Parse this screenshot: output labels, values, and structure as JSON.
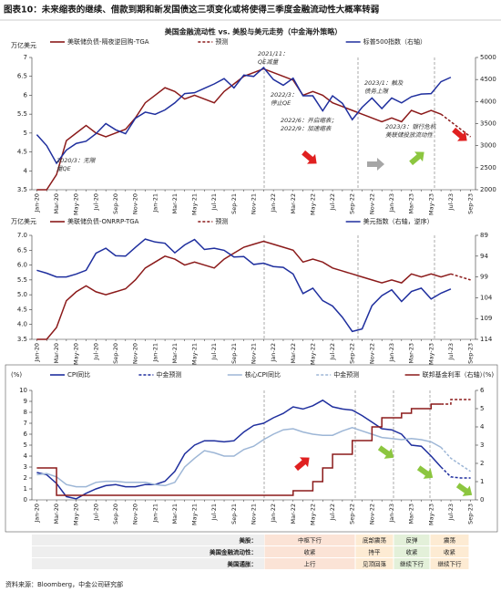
{
  "title": "图表10：未来缩表的继续、借款到期和新发国债这三项变化或将使得三季度金融流动性大概率转弱",
  "chart_data": [
    {
      "type": "line",
      "title": "美国金融流动性 vs. 美股与美元走势（中金海外策略）",
      "y_label": "万亿美元",
      "categories": [
        "Jan-20",
        null,
        "Mar-20",
        null,
        "May-20",
        null,
        "Jul-20",
        null,
        "Sep-20",
        null,
        "Nov-20",
        null,
        "Jan-21",
        null,
        "Mar-21",
        null,
        "May-21",
        null,
        "Jul-21",
        null,
        "Sep-21",
        null,
        "Nov-21",
        null,
        "Jan-22",
        null,
        "Mar-22",
        null,
        "May-22",
        null,
        "Jul-22",
        null,
        "Sep-22",
        null,
        "Nov-22",
        null,
        "Jan-23",
        null,
        "Mar-23",
        null,
        "May-23",
        null,
        "Jul-23",
        null,
        "Sep-23"
      ],
      "ylim": [
        3.5,
        7
      ],
      "yticks": [
        3.5,
        4,
        4.5,
        5,
        5.5,
        6,
        6.5,
        7
      ],
      "y2lim": [
        2000,
        5000
      ],
      "y2ticks": [
        2000,
        2500,
        3000,
        3500,
        4000,
        4500,
        5000
      ],
      "series": [
        {
          "name": "美联储负债-隔夜逆回购-TGA",
          "color": "#8b1a1a",
          "values": [
            3.5,
            3.5,
            3.9,
            4.8,
            5.0,
            5.2,
            5.0,
            4.9,
            5.0,
            5.1,
            5.4,
            5.8,
            6.0,
            6.2,
            6.1,
            5.9,
            6.0,
            5.9,
            5.8,
            6.1,
            6.3,
            6.5,
            6.6,
            6.7,
            6.6,
            6.5,
            6.4,
            6.0,
            6.1,
            6.0,
            5.8,
            5.7,
            5.6,
            5.5,
            5.4,
            5.3,
            5.4,
            5.3,
            5.6,
            5.5,
            5.6,
            5.5,
            null,
            null,
            null
          ]
        },
        {
          "name": "预测",
          "color": "#8b1a1a",
          "dash": true,
          "values": [
            null,
            null,
            null,
            null,
            null,
            null,
            null,
            null,
            null,
            null,
            null,
            null,
            null,
            null,
            null,
            null,
            null,
            null,
            null,
            null,
            null,
            null,
            null,
            null,
            null,
            null,
            null,
            null,
            null,
            null,
            null,
            null,
            null,
            null,
            null,
            null,
            null,
            null,
            null,
            null,
            null,
            5.5,
            5.3,
            5.1,
            4.9
          ]
        },
        {
          "name": "标普500指数（右轴）",
          "color": "#1f2f9e",
          "axis": "y2",
          "values": [
            3250,
            3000,
            2600,
            2900,
            3050,
            3100,
            3270,
            3500,
            3360,
            3270,
            3620,
            3760,
            3710,
            3810,
            3970,
            4180,
            4200,
            4300,
            4400,
            4520,
            4310,
            4600,
            4570,
            4770,
            4500,
            4370,
            4530,
            4130,
            4130,
            3790,
            4130,
            3960,
            3590,
            3870,
            4080,
            3840,
            4080,
            3970,
            4110,
            4170,
            4180,
            4450,
            4550,
            null,
            null
          ]
        }
      ],
      "annotations": [
        [
          "2020/3：无限",
          "量QE"
        ],
        [
          "2021/11：",
          "QE减量"
        ],
        [
          "2022/3：",
          "停止QE"
        ],
        [
          "2022/6：开启缩表；",
          "2022/9：加速缩表"
        ],
        [
          "2023/1：触及",
          "债务上限"
        ],
        [
          "2023/3：银行危机",
          "美联储投放流动性"
        ]
      ]
    },
    {
      "type": "line",
      "y_label": "万亿美元",
      "categories": [
        "Jan-20",
        null,
        "Mar-20",
        null,
        "May-20",
        null,
        "Jul-20",
        null,
        "Sep-20",
        null,
        "Nov-20",
        null,
        "Jan-21",
        null,
        "Mar-21",
        null,
        "May-21",
        null,
        "Jul-21",
        null,
        "Sep-21",
        null,
        "Nov-21",
        null,
        "Jan-22",
        null,
        "Mar-22",
        null,
        "May-22",
        null,
        "Jul-22",
        null,
        "Sep-22",
        null,
        "Nov-22",
        null,
        "Jan-23",
        null,
        "Mar-23",
        null,
        "May-23",
        null,
        "Jul-23",
        null,
        "Sep-23"
      ],
      "ylim": [
        3.5,
        7
      ],
      "yticks": [
        {
          "value": 3.5,
          "label": "3.5"
        },
        {
          "value": 4,
          "label": "4.0"
        },
        {
          "value": 4.5,
          "label": "4.5"
        },
        {
          "value": 5,
          "label": "5.0"
        },
        {
          "value": 5.5,
          "label": "5.5"
        },
        {
          "value": 6,
          "label": "6.0"
        },
        {
          "value": 6.5,
          "label": "6.5"
        },
        {
          "value": 7,
          "label": "7.0"
        }
      ],
      "y2lim": [
        89,
        114
      ],
      "y2_reversed": true,
      "y2ticks": [
        89,
        94,
        99,
        104,
        109,
        114
      ],
      "series": [
        {
          "name": "美联储负债-ONRRP-TGA",
          "color": "#8b1a1a",
          "values": [
            3.5,
            3.5,
            3.9,
            4.8,
            5.1,
            5.3,
            5.1,
            5.0,
            5.1,
            5.2,
            5.5,
            5.9,
            6.1,
            6.3,
            6.2,
            6.0,
            6.1,
            6.0,
            5.9,
            6.2,
            6.4,
            6.6,
            6.7,
            6.8,
            6.7,
            6.6,
            6.5,
            6.1,
            6.2,
            6.1,
            5.9,
            5.8,
            5.7,
            5.6,
            5.5,
            5.4,
            5.5,
            5.4,
            5.7,
            5.6,
            5.7,
            5.6,
            5.7,
            null,
            null
          ]
        },
        {
          "name": "预测",
          "color": "#8b1a1a",
          "dash": true,
          "values": [
            null,
            null,
            null,
            null,
            null,
            null,
            null,
            null,
            null,
            null,
            null,
            null,
            null,
            null,
            null,
            null,
            null,
            null,
            null,
            null,
            null,
            null,
            null,
            null,
            null,
            null,
            null,
            null,
            null,
            null,
            null,
            null,
            null,
            null,
            null,
            null,
            null,
            null,
            null,
            null,
            null,
            null,
            5.7,
            5.6,
            5.5
          ]
        },
        {
          "name": "美元指数（右轴，逆序）",
          "color": "#1f2f9e",
          "axis": "y2",
          "values": [
            97.4,
            98.1,
            99.0,
            99.0,
            98.3,
            97.4,
            93.3,
            92.1,
            93.9,
            94.0,
            91.9,
            89.9,
            90.6,
            90.9,
            93.2,
            91.3,
            90.0,
            92.4,
            92.1,
            92.6,
            94.2,
            94.1,
            96.0,
            95.7,
            96.5,
            96.7,
            98.3,
            103.0,
            101.7,
            104.7,
            106.0,
            108.7,
            112.1,
            111.5,
            105.9,
            103.5,
            102.1,
            104.9,
            102.5,
            101.7,
            104.3,
            102.9,
            101.9,
            null,
            null
          ]
        }
      ]
    },
    {
      "type": "line",
      "y_label": "(%)",
      "y2_label": "(%)",
      "categories": [
        "Jan-20",
        null,
        "Mar-20",
        null,
        "May-20",
        null,
        "Jul-20",
        null,
        "Sep-20",
        null,
        "Nov-20",
        null,
        "Jan-21",
        null,
        "Mar-21",
        null,
        "May-21",
        null,
        "Jul-21",
        null,
        "Sep-21",
        null,
        "Nov-21",
        null,
        "Jan-22",
        null,
        "Mar-22",
        null,
        "May-22",
        null,
        "Jul-22",
        null,
        "Sep-22",
        null,
        "Nov-22",
        null,
        "Jan-23",
        null,
        "Mar-23",
        null,
        "May-23",
        null,
        "Jul-23",
        null,
        "Sep-23"
      ],
      "ylim": [
        0,
        10
      ],
      "yticks": [
        0,
        1,
        2,
        3,
        4,
        5,
        6,
        7,
        8,
        9,
        10
      ],
      "y2lim": [
        0,
        6
      ],
      "y2ticks": [
        0,
        1,
        2,
        3,
        4,
        5,
        6
      ],
      "series": [
        {
          "name": "CPI同比",
          "color": "#1f2f9e",
          "values": [
            2.5,
            2.3,
            1.5,
            0.3,
            0.1,
            0.6,
            1.0,
            1.3,
            1.4,
            1.2,
            1.2,
            1.4,
            1.4,
            1.7,
            2.6,
            4.2,
            5.0,
            5.4,
            5.4,
            5.3,
            5.4,
            6.2,
            6.8,
            7.0,
            7.5,
            7.9,
            8.5,
            8.3,
            8.6,
            9.1,
            8.5,
            8.3,
            8.2,
            7.7,
            7.1,
            6.5,
            6.4,
            6.0,
            5.0,
            4.9,
            4.0,
            3.0,
            null,
            null,
            null
          ]
        },
        {
          "name": "中金预测",
          "color": "#1f2f9e",
          "dash": true,
          "values": [
            null,
            null,
            null,
            null,
            null,
            null,
            null,
            null,
            null,
            null,
            null,
            null,
            null,
            null,
            null,
            null,
            null,
            null,
            null,
            null,
            null,
            null,
            null,
            null,
            null,
            null,
            null,
            null,
            null,
            null,
            null,
            null,
            null,
            null,
            null,
            null,
            null,
            null,
            null,
            null,
            null,
            3.0,
            2.1,
            2.0,
            2.0
          ]
        },
        {
          "name": "核心CPI同比",
          "color": "#9db6d6",
          "values": [
            2.3,
            2.4,
            2.1,
            1.4,
            1.2,
            1.2,
            1.6,
            1.7,
            1.7,
            1.6,
            1.6,
            1.6,
            1.4,
            1.3,
            1.6,
            3.0,
            3.8,
            4.5,
            4.3,
            4.0,
            4.0,
            4.6,
            4.9,
            5.5,
            6.0,
            6.4,
            6.5,
            6.2,
            6.0,
            5.9,
            5.9,
            6.3,
            6.6,
            6.3,
            6.0,
            5.7,
            5.6,
            5.5,
            5.6,
            5.5,
            5.3,
            4.8,
            null,
            null,
            null
          ]
        },
        {
          "name": "中金预测",
          "color": "#9db6d6",
          "dash": true,
          "values": [
            null,
            null,
            null,
            null,
            null,
            null,
            null,
            null,
            null,
            null,
            null,
            null,
            null,
            null,
            null,
            null,
            null,
            null,
            null,
            null,
            null,
            null,
            null,
            null,
            null,
            null,
            null,
            null,
            null,
            null,
            null,
            null,
            null,
            null,
            null,
            null,
            null,
            null,
            null,
            null,
            null,
            4.8,
            3.8,
            3.2,
            2.6
          ]
        },
        {
          "name": "联邦基金利率（右轴）",
          "color": "#8b1a1a",
          "axis": "y2",
          "step": true,
          "values": [
            1.75,
            1.75,
            0.25,
            0.25,
            0.25,
            0.25,
            0.25,
            0.25,
            0.25,
            0.25,
            0.25,
            0.25,
            0.25,
            0.25,
            0.25,
            0.25,
            0.25,
            0.25,
            0.25,
            0.25,
            0.25,
            0.25,
            0.25,
            0.25,
            0.25,
            0.25,
            0.5,
            0.5,
            1.0,
            1.75,
            2.5,
            2.5,
            3.25,
            3.25,
            4.0,
            4.5,
            4.5,
            4.75,
            5.0,
            5.0,
            5.25,
            5.25,
            null,
            null,
            null
          ]
        },
        {
          "name": "预测",
          "color": "#8b1a1a",
          "axis": "y2",
          "dash": true,
          "step": true,
          "legend": false,
          "values": [
            null,
            null,
            null,
            null,
            null,
            null,
            null,
            null,
            null,
            null,
            null,
            null,
            null,
            null,
            null,
            null,
            null,
            null,
            null,
            null,
            null,
            null,
            null,
            null,
            null,
            null,
            null,
            null,
            null,
            null,
            null,
            null,
            null,
            null,
            null,
            null,
            null,
            null,
            null,
            null,
            null,
            5.25,
            5.5,
            5.5,
            5.5
          ]
        }
      ]
    }
  ],
  "table": {
    "rows": [
      {
        "label": "美股：",
        "cells": [
          "中枢下行",
          "底部震荡",
          "反弹",
          "震荡"
        ]
      },
      {
        "label": "美国金融流动性：",
        "cells": [
          "收紧",
          "持平",
          "收紧",
          "收紧"
        ]
      },
      {
        "label": "美国通胀：",
        "cells": [
          "上行",
          "见顶回落",
          "继续下行",
          "继续下行"
        ]
      }
    ]
  },
  "source": "资料来源：Bloomberg，中金公司研究部"
}
